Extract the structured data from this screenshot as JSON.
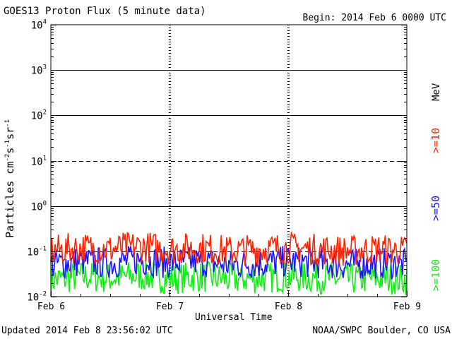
{
  "title": "GOES13 Proton Flux (5 minute data)",
  "begin": "Begin: 2014 Feb 6 0000 UTC",
  "updated": "Updated 2014 Feb  8 23:56:02 UTC",
  "credit": "NOAA/SWPC Boulder, CO USA",
  "ylabel": "Particles cm",
  "ylabel_sup1": "-2",
  "ylabel_mid1": "s",
  "ylabel_sup2": "-1",
  "ylabel_mid2": "sr",
  "ylabel_sup3": "-1",
  "xlabel": "Universal Time",
  "unit": "MeV",
  "colors": {
    "ge10": "#ff2200",
    "ge50": "#1a14ff",
    "ge100": "#11ee11"
  },
  "chart_data": {
    "type": "line",
    "title": "GOES13 Proton Flux (5 minute data)",
    "xlabel": "Universal Time",
    "ylabel": "Particles cm-2s-1sr-1",
    "yscale": "log",
    "ylim": [
      0.01,
      10000
    ],
    "grid": true,
    "y_ticks": [
      {
        "value": 0.01,
        "base": "10",
        "exp": "-2"
      },
      {
        "value": 0.1,
        "base": "10",
        "exp": "-1"
      },
      {
        "value": 1,
        "base": "10",
        "exp": "0"
      },
      {
        "value": 10,
        "base": "10",
        "exp": "1"
      },
      {
        "value": 100,
        "base": "10",
        "exp": "2"
      },
      {
        "value": 1000,
        "base": "10",
        "exp": "3"
      },
      {
        "value": 10000,
        "base": "10",
        "exp": "4"
      }
    ],
    "x_ticks": [
      "Feb 6",
      "Feb 7",
      "Feb 8",
      "Feb 9"
    ],
    "x": [
      "2014-02-06",
      "2014-02-06",
      "2014-02-06",
      "2014-02-06",
      "2014-02-07",
      "2014-02-07",
      "2014-02-07",
      "2014-02-07",
      "2014-02-08",
      "2014-02-08",
      "2014-02-08",
      "2014-02-08",
      "2014-02-09"
    ],
    "series": [
      {
        "name": ">=10",
        "color": "#ff2200",
        "values": [
          0.11,
          0.13,
          0.12,
          0.14,
          0.12,
          0.13,
          0.11,
          0.12,
          0.13,
          0.12,
          0.11,
          0.12,
          0.11
        ]
      },
      {
        "name": ">=50",
        "color": "#1a14ff",
        "values": [
          0.055,
          0.065,
          0.06,
          0.07,
          0.06,
          0.065,
          0.055,
          0.06,
          0.065,
          0.06,
          0.055,
          0.06,
          0.055
        ]
      },
      {
        "name": ">=100",
        "color": "#11ee11",
        "values": [
          0.025,
          0.03,
          0.028,
          0.032,
          0.027,
          0.03,
          0.026,
          0.028,
          0.03,
          0.028,
          0.026,
          0.028,
          0.026
        ]
      }
    ]
  }
}
